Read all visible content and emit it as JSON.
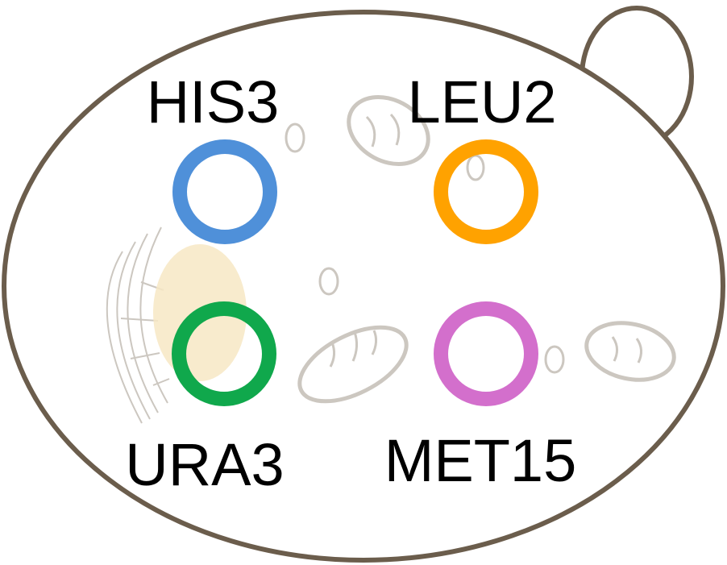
{
  "colors": {
    "cell_outline": "#6b5d4c",
    "cell_fill": "#ffffff",
    "organelle_outline": "#ccc7c0",
    "nucleus_fill": "#f7e8c4",
    "text": "#000000"
  },
  "plasmids": [
    {
      "label": "HIS3",
      "color": "#4f90d9"
    },
    {
      "label": "LEU2",
      "color": "#ffa200"
    },
    {
      "label": "URA3",
      "color": "#10a84c"
    },
    {
      "label": "MET15",
      "color": "#d36fcc"
    }
  ]
}
